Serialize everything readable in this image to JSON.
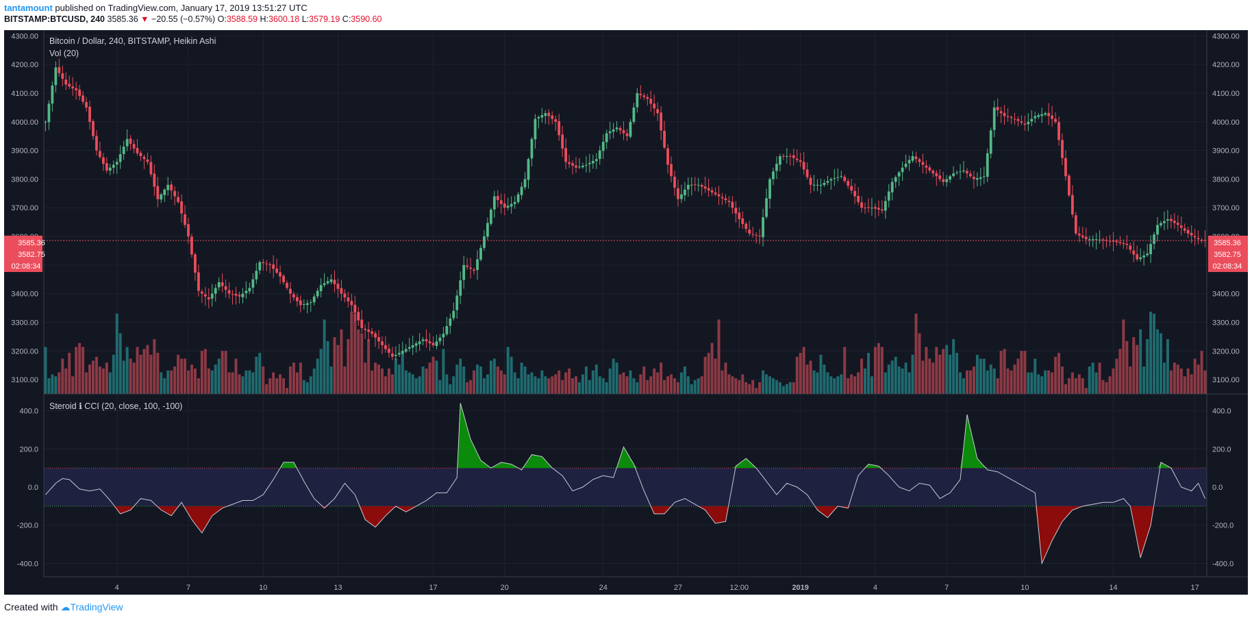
{
  "header": {
    "author": "tantamount",
    "published": "published on TradingView.com, January 17, 2019 13:51:27 UTC",
    "symbol": "BITSTAMP:BTCUSD, 240",
    "last": "3585.36",
    "arrow": "▼",
    "change": "−20.55 (−0.57%)",
    "o_label": "O:",
    "o_value": "3588.59",
    "h_label": "H:",
    "h_value": "3600.18",
    "l_label": "L:",
    "l_value": "3579.19",
    "c_label": "C:",
    "c_value": "3590.60"
  },
  "chart_title": "Bitcoin / Dollar, 240, BITSTAMP, Heikin Ashi",
  "volume_label": "Vol (20)",
  "cci_title": "Steroid ℹ CCI (20, close, 100, -100)",
  "price_badges": [
    "3585.36",
    "3582.75",
    "02:08:34"
  ],
  "footer": {
    "created": "Created with",
    "brand": "TradingView"
  },
  "colors": {
    "background": "#131722",
    "up": "#53b987",
    "down": "#eb4d5c",
    "vol_up": "#1f6b6f",
    "vol_down": "#8c3a45",
    "cci_band": "#1e2140",
    "cci_pos": "#0b8a0b",
    "cci_neg": "#8c0b0b",
    "cci_line": "#c9ccd4"
  },
  "chart_data": [
    {
      "type": "candlestick",
      "title": "Bitcoin / Dollar, 240, BITSTAMP, Heikin Ashi",
      "ylim": [
        3050,
        4320
      ],
      "y_ticks": [
        4300,
        4200,
        4100,
        4000,
        3900,
        3800,
        3700,
        3600,
        3500,
        3400,
        3300,
        3200,
        3100
      ],
      "x_tick_labels": [
        "4",
        "7",
        "10",
        "13",
        "17",
        "20",
        "24",
        "27",
        "12:00",
        "2019",
        "4",
        "7",
        "10",
        "14",
        "17"
      ],
      "path": [
        [
          0,
          4000
        ],
        [
          3,
          4190
        ],
        [
          6,
          4130
        ],
        [
          9,
          4110
        ],
        [
          12,
          4050
        ],
        [
          15,
          3900
        ],
        [
          18,
          3830
        ],
        [
          21,
          3860
        ],
        [
          24,
          3940
        ],
        [
          27,
          3890
        ],
        [
          30,
          3860
        ],
        [
          33,
          3730
        ],
        [
          36,
          3780
        ],
        [
          39,
          3720
        ],
        [
          42,
          3600
        ],
        [
          45,
          3410
        ],
        [
          48,
          3380
        ],
        [
          51,
          3440
        ],
        [
          54,
          3400
        ],
        [
          57,
          3390
        ],
        [
          60,
          3420
        ],
        [
          63,
          3510
        ],
        [
          66,
          3500
        ],
        [
          69,
          3460
        ],
        [
          72,
          3400
        ],
        [
          75,
          3360
        ],
        [
          78,
          3370
        ],
        [
          81,
          3430
        ],
        [
          84,
          3450
        ],
        [
          87,
          3400
        ],
        [
          90,
          3360
        ],
        [
          93,
          3280
        ],
        [
          96,
          3260
        ],
        [
          99,
          3220
        ],
        [
          102,
          3180
        ],
        [
          105,
          3200
        ],
        [
          108,
          3220
        ],
        [
          111,
          3240
        ],
        [
          114,
          3220
        ],
        [
          117,
          3260
        ],
        [
          120,
          3340
        ],
        [
          123,
          3500
        ],
        [
          126,
          3480
        ],
        [
          129,
          3600
        ],
        [
          132,
          3740
        ],
        [
          135,
          3700
        ],
        [
          138,
          3720
        ],
        [
          141,
          3800
        ],
        [
          144,
          4010
        ],
        [
          147,
          4030
        ],
        [
          150,
          4000
        ],
        [
          153,
          3860
        ],
        [
          156,
          3840
        ],
        [
          159,
          3850
        ],
        [
          162,
          3870
        ],
        [
          165,
          3960
        ],
        [
          168,
          3980
        ],
        [
          171,
          3950
        ],
        [
          174,
          4100
        ],
        [
          177,
          4080
        ],
        [
          180,
          4030
        ],
        [
          183,
          3850
        ],
        [
          186,
          3730
        ],
        [
          189,
          3780
        ],
        [
          192,
          3780
        ],
        [
          195,
          3760
        ],
        [
          198,
          3740
        ],
        [
          201,
          3720
        ],
        [
          204,
          3660
        ],
        [
          207,
          3610
        ],
        [
          210,
          3600
        ],
        [
          213,
          3800
        ],
        [
          216,
          3880
        ],
        [
          219,
          3880
        ],
        [
          222,
          3860
        ],
        [
          225,
          3780
        ],
        [
          228,
          3780
        ],
        [
          231,
          3800
        ],
        [
          234,
          3810
        ],
        [
          237,
          3760
        ],
        [
          240,
          3700
        ],
        [
          243,
          3700
        ],
        [
          246,
          3690
        ],
        [
          249,
          3790
        ],
        [
          252,
          3840
        ],
        [
          255,
          3880
        ],
        [
          258,
          3850
        ],
        [
          261,
          3820
        ],
        [
          264,
          3790
        ],
        [
          267,
          3820
        ],
        [
          270,
          3830
        ],
        [
          273,
          3800
        ],
        [
          276,
          3810
        ],
        [
          279,
          4050
        ],
        [
          282,
          4020
        ],
        [
          285,
          4010
        ],
        [
          288,
          3990
        ],
        [
          291,
          4020
        ],
        [
          294,
          4030
        ],
        [
          297,
          4000
        ],
        [
          300,
          3810
        ],
        [
          303,
          3610
        ],
        [
          306,
          3590
        ],
        [
          309,
          3590
        ],
        [
          312,
          3585
        ],
        [
          315,
          3580
        ],
        [
          318,
          3570
        ],
        [
          321,
          3520
        ],
        [
          324,
          3540
        ],
        [
          327,
          3640
        ],
        [
          330,
          3660
        ],
        [
          333,
          3640
        ],
        [
          336,
          3610
        ],
        [
          339,
          3590
        ],
        [
          341,
          3585
        ]
      ],
      "last_price": 3585.36
    },
    {
      "type": "bar",
      "title": "Vol (20)",
      "values": [
        24,
        8,
        10,
        9,
        11,
        18,
        13,
        21,
        9,
        24,
        26,
        24,
        11,
        15,
        17,
        19,
        14,
        13,
        16,
        11,
        20,
        41,
        31,
        17,
        24,
        18,
        16,
        24,
        20,
        23,
        25,
        20,
        28,
        21,
        11,
        8,
        12,
        12,
        14,
        20,
        18,
        18,
        12,
        15,
        13,
        8,
        22,
        23,
        13,
        12,
        15,
        18,
        22,
        22,
        11,
        11,
        18,
        10,
        9,
        12,
        12,
        11,
        19,
        21,
        14,
        5,
        8,
        11,
        8,
        10,
        8,
        3,
        14,
        16,
        11,
        16,
        7,
        6,
        9,
        13,
        18,
        23,
        38,
        27,
        14,
        29,
        25,
        33,
        14,
        28,
        42,
        41,
        33,
        31,
        16,
        28,
        12,
        16,
        15,
        13,
        9,
        13,
        10,
        18,
        15,
        22,
        12,
        11,
        10,
        8,
        9,
        14,
        13,
        16,
        19,
        17,
        7,
        23,
        10,
        5,
        9,
        15,
        18,
        14,
        6,
        7,
        12,
        15,
        14,
        8,
        10,
        17,
        18,
        14,
        12,
        10,
        24,
        19,
        11,
        8,
        16,
        14,
        10,
        11,
        9,
        8,
        12,
        9,
        8,
        9,
        10,
        12,
        7,
        11,
        13,
        8,
        9,
        6,
        10,
        14,
        7,
        12,
        15,
        9,
        8,
        6,
        13,
        18,
        16,
        10,
        11,
        9,
        12,
        8,
        6,
        10,
        14,
        7,
        9,
        13,
        11,
        16,
        7,
        9,
        10,
        8,
        6,
        11,
        14,
        9,
        5,
        7,
        8,
        9,
        19,
        21,
        26,
        18,
        38,
        12,
        16,
        10,
        9,
        8,
        7,
        10,
        6,
        5,
        7,
        3,
        6,
        12,
        10,
        9,
        8,
        7,
        6,
        4,
        5,
        6,
        6,
        19,
        21,
        24,
        15,
        17,
        12,
        11,
        20,
        15,
        11,
        9,
        8,
        9,
        10
      ]
    },
    {
      "type": "area",
      "title": "Steroid ℹ CCI (20, close, 100, -100)",
      "ylim": [
        -470,
        470
      ],
      "y_ticks": [
        400,
        200,
        0,
        -200,
        -400
      ],
      "levels": [
        100,
        -100
      ],
      "path": [
        [
          0,
          -40
        ],
        [
          3,
          20
        ],
        [
          5,
          45
        ],
        [
          7,
          40
        ],
        [
          10,
          -10
        ],
        [
          13,
          -20
        ],
        [
          16,
          -10
        ],
        [
          19,
          -70
        ],
        [
          22,
          -140
        ],
        [
          25,
          -120
        ],
        [
          28,
          -60
        ],
        [
          31,
          -70
        ],
        [
          34,
          -120
        ],
        [
          37,
          -150
        ],
        [
          40,
          -80
        ],
        [
          43,
          -170
        ],
        [
          46,
          -240
        ],
        [
          49,
          -150
        ],
        [
          52,
          -110
        ],
        [
          55,
          -90
        ],
        [
          58,
          -70
        ],
        [
          61,
          -70
        ],
        [
          64,
          -40
        ],
        [
          67,
          40
        ],
        [
          70,
          130
        ],
        [
          73,
          130
        ],
        [
          76,
          30
        ],
        [
          79,
          -60
        ],
        [
          82,
          -110
        ],
        [
          85,
          -60
        ],
        [
          88,
          20
        ],
        [
          91,
          -40
        ],
        [
          94,
          -170
        ],
        [
          97,
          -210
        ],
        [
          100,
          -150
        ],
        [
          103,
          -100
        ],
        [
          106,
          -130
        ],
        [
          109,
          -100
        ],
        [
          112,
          -70
        ],
        [
          115,
          -30
        ],
        [
          118,
          -30
        ],
        [
          121,
          50
        ],
        [
          122,
          440
        ],
        [
          125,
          250
        ],
        [
          128,
          140
        ],
        [
          131,
          100
        ],
        [
          134,
          130
        ],
        [
          137,
          120
        ],
        [
          140,
          90
        ],
        [
          143,
          170
        ],
        [
          146,
          160
        ],
        [
          149,
          100
        ],
        [
          152,
          60
        ],
        [
          155,
          -20
        ],
        [
          158,
          0
        ],
        [
          161,
          40
        ],
        [
          164,
          60
        ],
        [
          167,
          50
        ],
        [
          170,
          210
        ],
        [
          173,
          120
        ],
        [
          176,
          -20
        ],
        [
          179,
          -140
        ],
        [
          182,
          -140
        ],
        [
          185,
          -80
        ],
        [
          188,
          -60
        ],
        [
          191,
          -90
        ],
        [
          194,
          -120
        ],
        [
          197,
          -190
        ],
        [
          200,
          -180
        ],
        [
          203,
          110
        ],
        [
          206,
          150
        ],
        [
          209,
          100
        ],
        [
          212,
          30
        ],
        [
          215,
          -40
        ],
        [
          218,
          20
        ],
        [
          221,
          0
        ],
        [
          224,
          -40
        ],
        [
          227,
          -120
        ],
        [
          230,
          -160
        ],
        [
          233,
          -100
        ],
        [
          236,
          -110
        ],
        [
          239,
          60
        ],
        [
          242,
          120
        ],
        [
          245,
          110
        ],
        [
          248,
          60
        ],
        [
          251,
          0
        ],
        [
          254,
          -20
        ],
        [
          257,
          20
        ],
        [
          260,
          10
        ],
        [
          263,
          -60
        ],
        [
          266,
          -30
        ],
        [
          269,
          40
        ],
        [
          271,
          380
        ],
        [
          274,
          150
        ],
        [
          277,
          90
        ],
        [
          280,
          80
        ],
        [
          283,
          50
        ],
        [
          286,
          20
        ],
        [
          289,
          -10
        ],
        [
          291,
          -30
        ],
        [
          293,
          -400
        ],
        [
          296,
          -280
        ],
        [
          299,
          -180
        ],
        [
          302,
          -120
        ],
        [
          305,
          -100
        ],
        [
          308,
          -90
        ],
        [
          311,
          -80
        ],
        [
          314,
          -80
        ],
        [
          317,
          -60
        ],
        [
          319,
          -100
        ],
        [
          322,
          -370
        ],
        [
          325,
          -200
        ],
        [
          328,
          130
        ],
        [
          331,
          100
        ],
        [
          334,
          0
        ],
        [
          337,
          -20
        ],
        [
          339,
          20
        ],
        [
          341,
          -60
        ]
      ]
    }
  ]
}
